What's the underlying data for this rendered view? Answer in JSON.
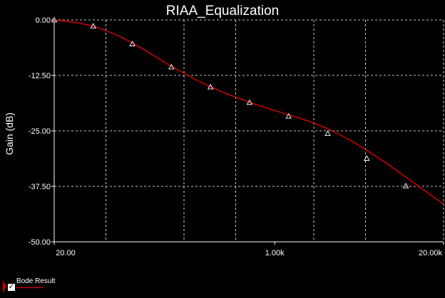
{
  "chart_data": {
    "type": "line",
    "title": "RIAA_Equalization",
    "xlabel": "",
    "ylabel": "Gain (dB)",
    "xscale": "log",
    "xlim": [
      20,
      20000
    ],
    "ylim": [
      -50,
      0
    ],
    "x_ticks": [
      {
        "value": 20,
        "label": "20.00"
      },
      {
        "value": 1000,
        "label": "1.00k"
      },
      {
        "value": 20000,
        "label": "20.00k"
      }
    ],
    "y_ticks": [
      {
        "value": 0,
        "label": "0.00"
      },
      {
        "value": -12.5,
        "label": "-12.50"
      },
      {
        "value": -25,
        "label": "-25.00"
      },
      {
        "value": -37.5,
        "label": "-37.50"
      },
      {
        "value": -50,
        "label": "-50.00"
      }
    ],
    "grid": true,
    "legend_position": "bottom-left",
    "series": [
      {
        "name": "Bode Result",
        "color": "#ff0000",
        "x": [
          20,
          25,
          31,
          40,
          50,
          63,
          79,
          100,
          126,
          158,
          200,
          251,
          316,
          398,
          501,
          631,
          794,
          1000,
          1259,
          1585,
          1995,
          2512,
          3162,
          3981,
          5012,
          6310,
          7943,
          10000,
          12589,
          15849,
          20000
        ],
        "y": [
          0.0,
          -0.3,
          -0.7,
          -1.4,
          -2.4,
          -3.6,
          -5.1,
          -6.8,
          -8.6,
          -10.4,
          -12.0,
          -13.6,
          -15.0,
          -16.3,
          -17.4,
          -18.5,
          -19.5,
          -20.4,
          -21.3,
          -22.2,
          -23.2,
          -24.4,
          -25.8,
          -27.4,
          -29.2,
          -31.1,
          -33.1,
          -35.2,
          -37.3,
          -39.4,
          -41.5
        ],
        "markers": {
          "x": [
            20,
            40,
            80,
            160,
            320,
            640,
            1280,
            2560,
            5120,
            10240
          ],
          "y": [
            0.0,
            -1.4,
            -5.4,
            -10.6,
            -15.1,
            -18.6,
            -21.7,
            -25.6,
            -31.2,
            -37.4
          ]
        }
      }
    ]
  },
  "legend": {
    "entries": [
      {
        "label": "Bode Result",
        "checked": true,
        "color": "#ff0000"
      }
    ],
    "check_glyph": "✓"
  },
  "colors": {
    "background": "#000000",
    "axis": "#ffffff",
    "grid": "#ffffff",
    "series": "#ff0000",
    "marker": "#ffffff"
  }
}
